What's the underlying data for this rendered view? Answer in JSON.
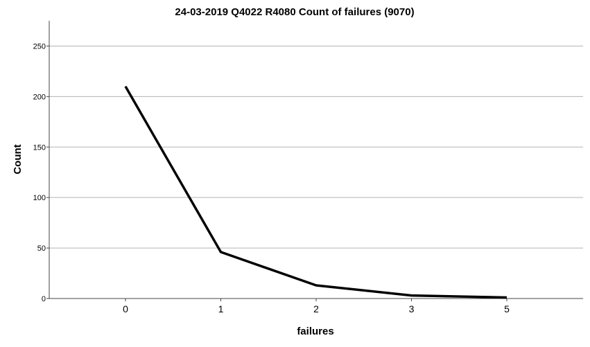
{
  "chart_data": {
    "type": "line",
    "title": "24-03-2019 Q4022 R4080 Count of failures (9070)",
    "xlabel": "failures",
    "ylabel": "Count",
    "categories": [
      "0",
      "1",
      "2",
      "3",
      "5"
    ],
    "series": [
      {
        "values": [
          210,
          46,
          13,
          3,
          1
        ]
      }
    ],
    "ylim": [
      0,
      275
    ],
    "yticks": [
      0,
      50,
      100,
      150,
      200,
      250
    ],
    "grid": true,
    "line_color": "#000000",
    "grid_color": "#b3b3b3",
    "axis_color": "#444444"
  }
}
